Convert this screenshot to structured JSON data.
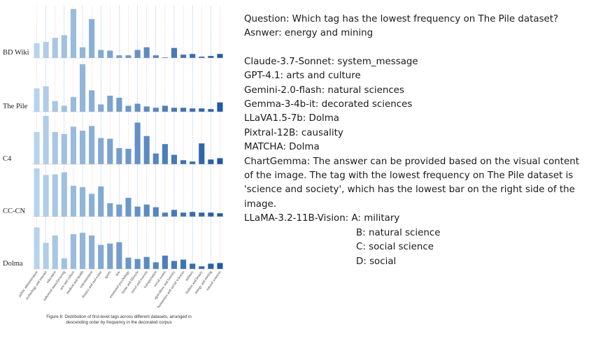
{
  "chart_data": {
    "type": "bar",
    "panels": [
      "BD Wiki",
      "The Pile",
      "C4",
      "CC-CN",
      "Dolma"
    ],
    "categories": [
      "public administration",
      "technology and internet",
      "education",
      "industrial manufacturing",
      "arts and culture",
      "medical and health",
      "entertainment",
      "finance and real estate",
      "sports",
      "law",
      "emotional psychology",
      "home and lifestyle",
      "travel and tourism",
      "transportation",
      "social events",
      "agriculture and forestry",
      "humanities and social sciences",
      "military",
      "fashion and beauty",
      "energy and mining",
      "natural sciences"
    ],
    "series": [
      {
        "name": "BD Wiki",
        "values": [
          22,
          24,
          30,
          34,
          73,
          16,
          58,
          12,
          11,
          4,
          4,
          12,
          16,
          4,
          1,
          15,
          5,
          6,
          2,
          3,
          6
        ]
      },
      {
        "name": "The Pile",
        "values": [
          35,
          38,
          16,
          9,
          22,
          71,
          32,
          11,
          24,
          21,
          9,
          12,
          8,
          6,
          9,
          6,
          6,
          5,
          5,
          4,
          14
        ]
      },
      {
        "name": "C4",
        "values": [
          48,
          72,
          48,
          45,
          56,
          50,
          57,
          39,
          38,
          24,
          23,
          62,
          42,
          16,
          30,
          14,
          6,
          4,
          31,
          7,
          9
        ]
      },
      {
        "name": "CC-CN",
        "values": [
          72,
          62,
          63,
          66,
          46,
          44,
          34,
          45,
          20,
          18,
          28,
          15,
          18,
          14,
          6,
          10,
          6,
          7,
          6,
          6,
          5
        ]
      },
      {
        "name": "Dolma",
        "values": [
          62,
          39,
          50,
          16,
          52,
          54,
          50,
          36,
          38,
          40,
          17,
          15,
          18,
          10,
          20,
          12,
          14,
          8,
          4,
          8,
          9
        ]
      }
    ],
    "caption": "Figure 6: Distribution of first-level tags across different datasets, arranged in descending order by frequency in the decorated corpus"
  },
  "qa": {
    "question": "Question: Which tag has the lowest frequency on The Pile dataset?",
    "answer": "Asnwer: energy and mining",
    "responses": [
      "Claude-3.7-Sonnet: system_message",
      "GPT-4.1: arts and culture",
      "Gemini-2.0-flash: natural sciences",
      "Gemma-3-4b-it: decorated sciences",
      "LLaVA1.5-7b: Dolma",
      "Pixtral-12B: causality",
      "MATCHA: Dolma"
    ],
    "chartgemma": "ChartGemma:  The answer can be provided based on the visual content of the image. The tag with the lowest frequency on The Pile dataset is 'science and society', which has the lowest bar on the right side of the image.",
    "llama_label": "LLaMA-3.2-11B-Vision: A: military",
    "llama_options": [
      "B: natural science",
      "C: social science",
      "D: social"
    ]
  }
}
